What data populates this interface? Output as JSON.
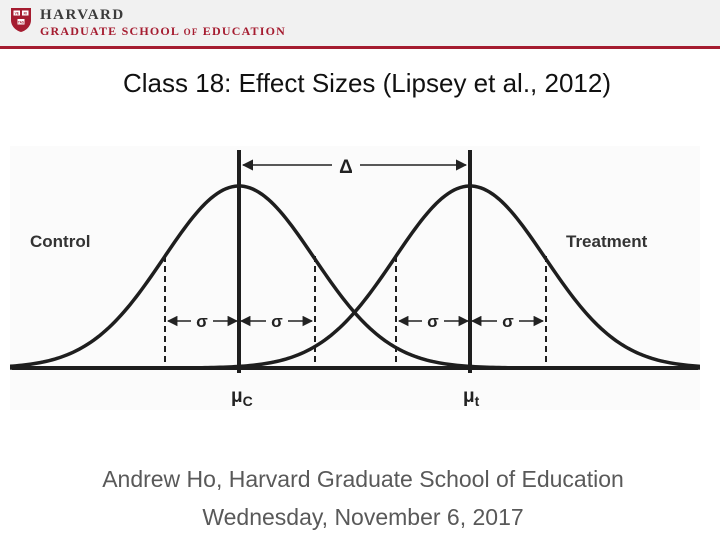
{
  "header": {
    "brand_top": "HARVARD",
    "brand_bottom_prefix": "GRADUATE SCHOOL",
    "brand_bottom_of": "OF",
    "brand_bottom_suffix": "EDUCATION",
    "shield_letters": [
      "VE",
      "RI",
      "TAS"
    ],
    "colors": {
      "crimson": "#a51c30",
      "band": "#f1f1f1"
    }
  },
  "slide": {
    "title": "Class 18: Effect Sizes (Lipsey et al., 2012)",
    "author_line": "Andrew Ho, Harvard Graduate School of Education",
    "date_line": "Wednesday, November 6, 2017"
  },
  "diagram": {
    "delta_label": "Δ",
    "control_label": "Control",
    "treatment_label": "Treatment",
    "sigma_label": "σ",
    "mu": "μ",
    "mu_c_sub": "C",
    "mu_t_sub": "t"
  }
}
